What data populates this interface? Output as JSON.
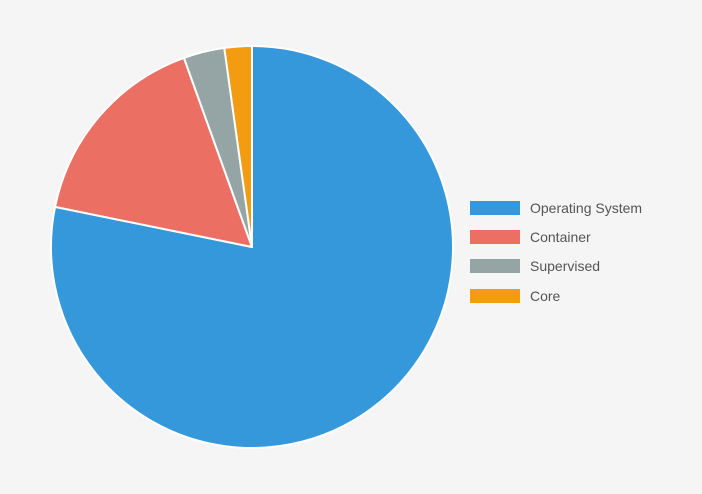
{
  "chart_data": {
    "type": "pie",
    "categories": [
      "Operating System",
      "Container",
      "Supervised",
      "Core"
    ],
    "values": [
      78.2,
      16.3,
      3.3,
      2.2
    ],
    "colors": [
      "#3498db",
      "#eb7063",
      "#95a5a6",
      "#f39c12"
    ],
    "slice_border_color": "#ffffff",
    "start_angle_deg": 0,
    "direction": "clockwise",
    "legend_position": "right",
    "title": ""
  },
  "legend": {
    "items": [
      {
        "label": "Operating System",
        "color": "#3498db"
      },
      {
        "label": "Container",
        "color": "#eb7063"
      },
      {
        "label": "Supervised",
        "color": "#95a5a6"
      },
      {
        "label": "Core",
        "color": "#f39c12"
      }
    ]
  }
}
